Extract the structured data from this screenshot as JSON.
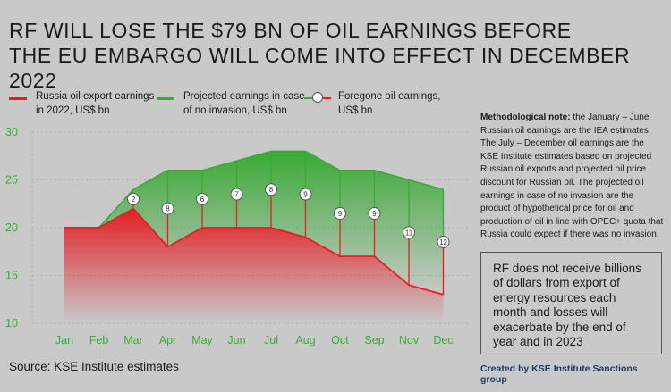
{
  "header": {
    "title_line1": "RF WILL LOSE THE $79 BN OF OIL EARNINGS BEFORE",
    "title_line2": "THE EU EMBARGO WILL COME INTO EFFECT IN DECEMBER 2022"
  },
  "legend": {
    "russia_line1": "Russia oil export earnings",
    "russia_line2": "in 2022, US$ bn",
    "projected_line1": "Projected earnings in case",
    "projected_line2": "of no invasion, US$ bn",
    "foregone_line1": "Foregone oil earnings,",
    "foregone_line2": "US$ bn"
  },
  "note": {
    "heading": "Methodological note:",
    "text": " the January – June Russian oil earnings are the IEA estimates. The July – December oil earnings are the KSE Institute estimates based on projected Russian oil exports and projected oil price discount for Russian oil. The projected oil earnings in case of no invasion are the product of hypothetical price for oil and production of oil in line with OPEC+ quota that Russia could expect if there was no invasion."
  },
  "callout": "RF does not receive billions of dollars from export of energy resources each month and losses will exacerbate by the end of year and in 2023",
  "source": "Source: KSE Institute estimates",
  "credit": "Created by KSE Institute Sanctions group",
  "colors": {
    "red": "#e31e24",
    "green": "#3aaa35",
    "background": "#c9c9c9"
  },
  "chart_data": {
    "type": "area",
    "categories": [
      "Jan",
      "Feb",
      "Mar",
      "Apr",
      "May",
      "Jun",
      "Jul",
      "Aug",
      "Oct",
      "Sep",
      "Nov",
      "Dec"
    ],
    "series": [
      {
        "name": "Russia oil export earnings in 2022, US$ bn",
        "values": [
          20,
          20,
          22,
          18,
          20,
          20,
          20,
          19,
          17,
          17,
          14,
          13
        ]
      },
      {
        "name": "Projected earnings in case of no invasion, US$ bn",
        "values": [
          20,
          20,
          24,
          26,
          26,
          27,
          28,
          28,
          26,
          26,
          25,
          24
        ]
      },
      {
        "name": "Foregone oil earnings, US$ bn",
        "values": [
          null,
          null,
          2,
          8,
          6,
          7,
          8,
          9,
          9,
          9,
          11,
          12
        ]
      }
    ],
    "yticks": [
      10,
      15,
      20,
      25,
      30
    ],
    "ylim": [
      10,
      30
    ],
    "grid": false
  }
}
